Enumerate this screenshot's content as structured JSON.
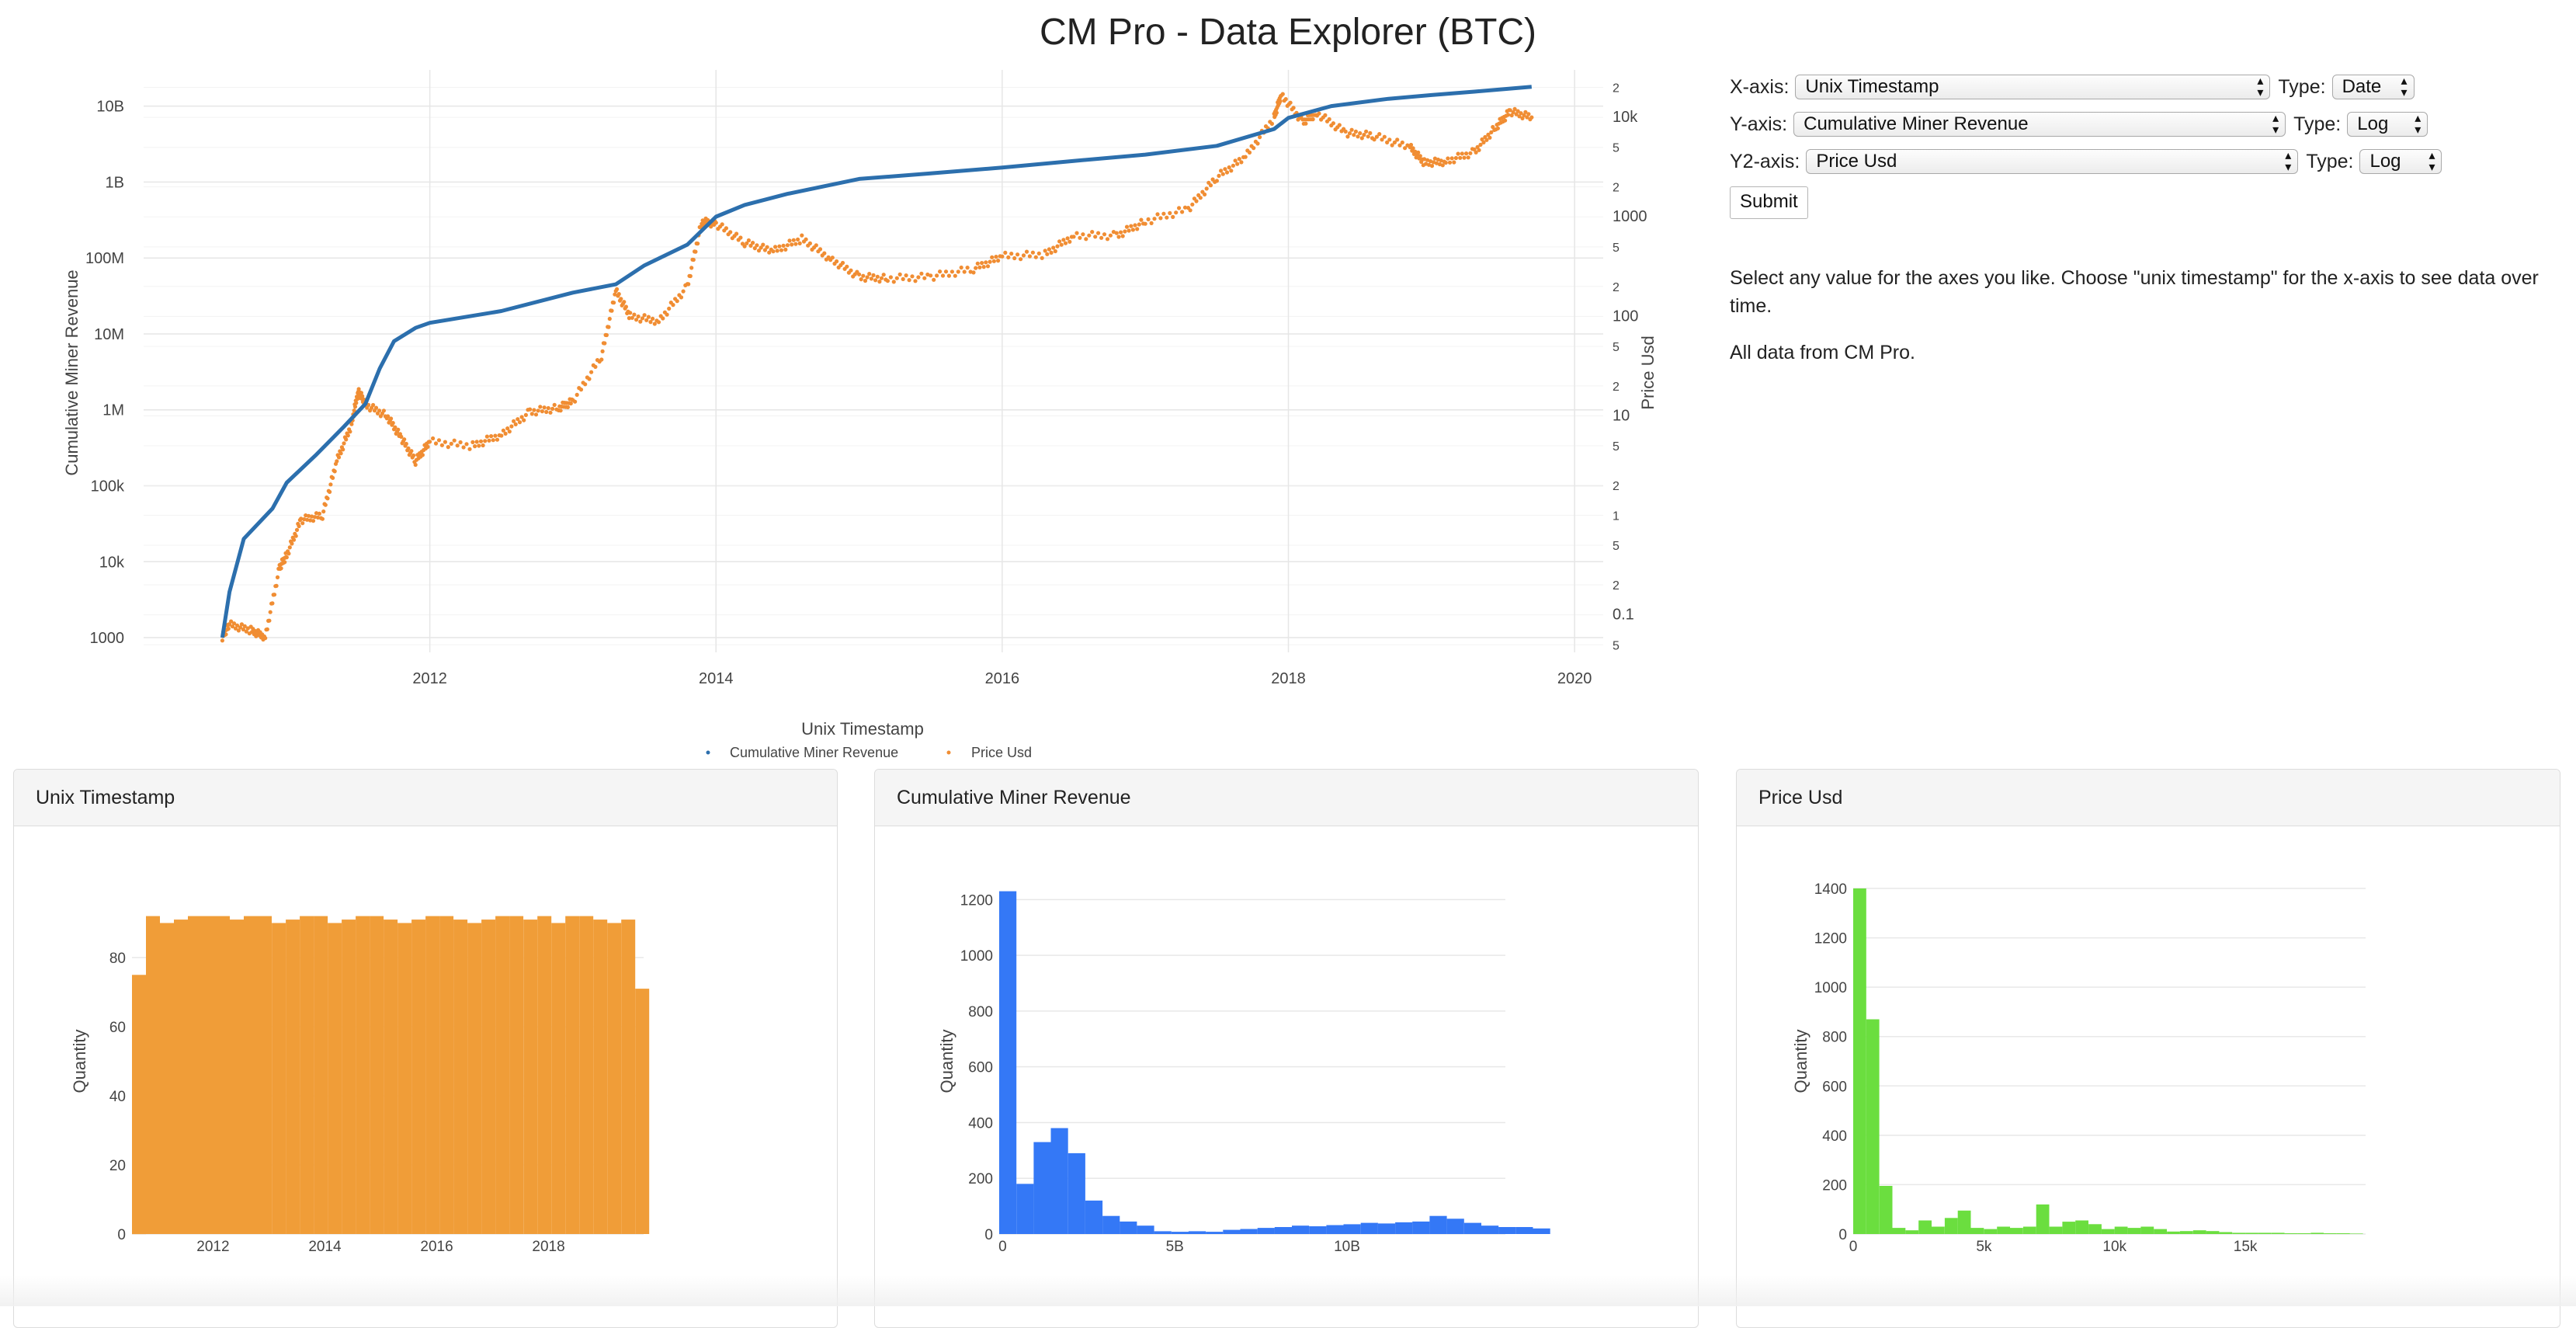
{
  "page_title": "CM Pro - Data Explorer (BTC)",
  "controls": {
    "x_axis": {
      "label": "X-axis:",
      "value": "Unix Timestamp",
      "type_label": "Type:",
      "type_value": "Date"
    },
    "y_axis": {
      "label": "Y-axis:",
      "value": "Cumulative Miner Revenue",
      "type_label": "Type:",
      "type_value": "Log"
    },
    "y2_axis": {
      "label": "Y2-axis:",
      "value": "Price Usd",
      "type_label": "Type:",
      "type_value": "Log"
    },
    "submit_label": "Submit"
  },
  "description": [
    "Select any value for the axes you like. Choose \"unix timestamp\" for the x-axis to see data over time.",
    "All data from CM Pro."
  ],
  "colors": {
    "revenue": "#2c6fad",
    "price": "#f08d33",
    "hist_time": "#f09d38",
    "hist_revenue": "#3478f6",
    "hist_price": "#6bde3f"
  },
  "chart_data": [
    {
      "type": "line",
      "title": "CM Pro - Data Explorer (BTC)",
      "xlabel": "Unix Timestamp",
      "ylabel": "Cumulative Miner Revenue",
      "y2label": "Price Usd",
      "xlim": [
        2010.0,
        2020.2
      ],
      "ylim_log": [
        640,
        30000000000
      ],
      "y2lim_log": [
        0.042,
        30000
      ],
      "x_ticks": [
        "2012",
        "2014",
        "2016",
        "2018",
        "2020"
      ],
      "y_ticks": [
        "1000",
        "10k",
        "100k",
        "1M",
        "10M",
        "100M",
        "1B",
        "10B"
      ],
      "y2_ticks": [
        "5",
        "0.1",
        "2",
        "5",
        "1",
        "2",
        "5",
        "10",
        "2",
        "5",
        "100",
        "2",
        "5",
        "1000",
        "2",
        "5",
        "10k",
        "2"
      ],
      "legend": [
        "Cumulative Miner Revenue",
        "Price Usd"
      ],
      "legend_position": "bottom-center",
      "series": [
        {
          "name": "Cumulative Miner Revenue",
          "style": "line",
          "points": [
            [
              2010.55,
              1000
            ],
            [
              2010.6,
              4000
            ],
            [
              2010.7,
              20000
            ],
            [
              2010.9,
              50000
            ],
            [
              2011.0,
              110000
            ],
            [
              2011.2,
              250000
            ],
            [
              2011.4,
              600000
            ],
            [
              2011.55,
              1200000
            ],
            [
              2011.65,
              3500000
            ],
            [
              2011.75,
              8000000
            ],
            [
              2011.9,
              12000000
            ],
            [
              2012.0,
              14000000
            ],
            [
              2012.5,
              20000000
            ],
            [
              2013.0,
              35000000
            ],
            [
              2013.3,
              45000000
            ],
            [
              2013.5,
              80000000
            ],
            [
              2013.8,
              150000000
            ],
            [
              2014.0,
              350000000
            ],
            [
              2014.2,
              500000000
            ],
            [
              2014.5,
              700000000
            ],
            [
              2015.0,
              1100000000
            ],
            [
              2015.5,
              1300000000
            ],
            [
              2016.0,
              1550000000
            ],
            [
              2016.5,
              1900000000
            ],
            [
              2017.0,
              2300000000
            ],
            [
              2017.5,
              3000000000
            ],
            [
              2017.9,
              5000000000
            ],
            [
              2018.0,
              7000000000
            ],
            [
              2018.3,
              10000000000
            ],
            [
              2018.7,
              12500000000
            ],
            [
              2019.0,
              14000000000
            ],
            [
              2019.3,
              15500000000
            ],
            [
              2019.7,
              18000000000
            ]
          ]
        },
        {
          "name": "Price Usd",
          "style": "markers",
          "points": [
            [
              2010.55,
              0.06
            ],
            [
              2010.6,
              0.08
            ],
            [
              2010.75,
              0.07
            ],
            [
              2010.85,
              0.06
            ],
            [
              2010.95,
              0.3
            ],
            [
              2011.0,
              0.4
            ],
            [
              2011.1,
              0.9
            ],
            [
              2011.25,
              1.0
            ],
            [
              2011.35,
              3.5
            ],
            [
              2011.45,
              8
            ],
            [
              2011.5,
              18
            ],
            [
              2011.55,
              13
            ],
            [
              2011.7,
              10
            ],
            [
              2011.8,
              6
            ],
            [
              2011.9,
              3.5
            ],
            [
              2012.0,
              5.5
            ],
            [
              2012.3,
              5
            ],
            [
              2012.5,
              6.5
            ],
            [
              2012.7,
              11
            ],
            [
              2012.9,
              12
            ],
            [
              2013.0,
              14
            ],
            [
              2013.2,
              40
            ],
            [
              2013.3,
              180
            ],
            [
              2013.4,
              100
            ],
            [
              2013.6,
              90
            ],
            [
              2013.8,
              200
            ],
            [
              2013.9,
              900
            ],
            [
              2014.0,
              850
            ],
            [
              2014.2,
              550
            ],
            [
              2014.4,
              450
            ],
            [
              2014.6,
              600
            ],
            [
              2014.8,
              380
            ],
            [
              2015.0,
              250
            ],
            [
              2015.2,
              240
            ],
            [
              2015.5,
              250
            ],
            [
              2015.8,
              300
            ],
            [
              2016.0,
              400
            ],
            [
              2016.3,
              420
            ],
            [
              2016.5,
              650
            ],
            [
              2016.8,
              650
            ],
            [
              2017.0,
              900
            ],
            [
              2017.3,
              1200
            ],
            [
              2017.5,
              2500
            ],
            [
              2017.7,
              4000
            ],
            [
              2017.9,
              10000
            ],
            [
              2017.95,
              17000
            ],
            [
              2018.1,
              9000
            ],
            [
              2018.2,
              11000
            ],
            [
              2018.4,
              7000
            ],
            [
              2018.6,
              6500
            ],
            [
              2018.85,
              5000
            ],
            [
              2018.95,
              3500
            ],
            [
              2019.1,
              3600
            ],
            [
              2019.3,
              4500
            ],
            [
              2019.45,
              8000
            ],
            [
              2019.55,
              11500
            ],
            [
              2019.7,
              10000
            ]
          ]
        }
      ]
    },
    {
      "type": "bar",
      "title": "Unix Timestamp",
      "ylabel": "Quantity",
      "x_ticks": [
        "2012",
        "2014",
        "2016",
        "2018"
      ],
      "y_ticks": [
        "0",
        "20",
        "40",
        "60",
        "80"
      ],
      "ylim": [
        0,
        100
      ],
      "xlim": [
        2010.55,
        2019.7
      ],
      "bin_width_years": 0.25,
      "values": [
        75,
        92,
        90,
        91,
        92,
        92,
        92,
        91,
        92,
        92,
        90,
        91,
        92,
        92,
        90,
        91,
        92,
        92,
        91,
        90,
        91,
        92,
        92,
        91,
        90,
        91,
        92,
        92,
        91,
        92,
        90,
        92,
        92,
        91,
        90,
        91,
        71
      ]
    },
    {
      "type": "bar",
      "title": "Cumulative Miner Revenue",
      "ylabel": "Quantity",
      "x_ticks": [
        "0",
        "5B",
        "10B"
      ],
      "y_ticks": [
        "0",
        "200",
        "400",
        "600",
        "800",
        "1000",
        "1200"
      ],
      "ylim": [
        0,
        1240
      ],
      "xlim": [
        -0.1,
        14.6
      ],
      "bin_width": 0.5,
      "values": [
        1230,
        180,
        330,
        380,
        290,
        120,
        65,
        45,
        30,
        10,
        8,
        10,
        8,
        15,
        18,
        22,
        25,
        30,
        28,
        32,
        35,
        40,
        38,
        42,
        45,
        65,
        55,
        40,
        30,
        25,
        25,
        20
      ]
    },
    {
      "type": "bar",
      "title": "Price Usd",
      "ylabel": "Quantity",
      "x_ticks": [
        "0",
        "5k",
        "10k",
        "15k"
      ],
      "y_ticks": [
        "0",
        "200",
        "400",
        "600",
        "800",
        "1000",
        "1200",
        "1400"
      ],
      "ylim": [
        0,
        1400
      ],
      "xlim": [
        0,
        19600
      ],
      "bin_width": 500,
      "values": [
        1400,
        870,
        195,
        25,
        15,
        55,
        30,
        65,
        95,
        25,
        20,
        30,
        25,
        30,
        120,
        30,
        50,
        55,
        40,
        20,
        30,
        25,
        30,
        20,
        10,
        12,
        15,
        12,
        8,
        5,
        5,
        5,
        5,
        3,
        3,
        5,
        3,
        3,
        2
      ]
    }
  ]
}
